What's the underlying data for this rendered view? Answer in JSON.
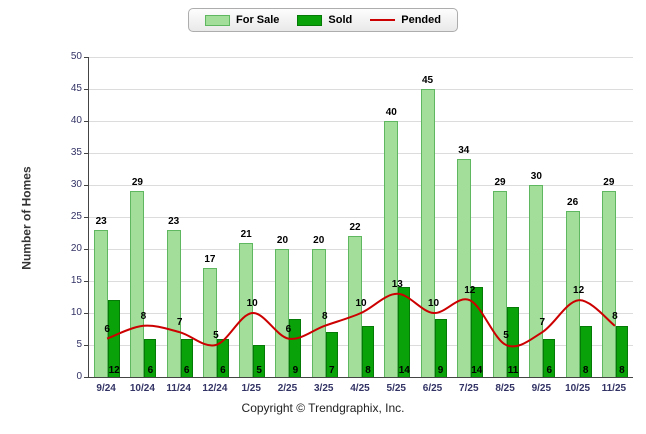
{
  "chart": {
    "ylabel": "Number of Homes",
    "footer": "Copyright © Trendgraphix, Inc."
  },
  "legend": {
    "items": [
      {
        "label": "For Sale",
        "type": "bar",
        "color": "#A3DF9B",
        "border_color": "#5FB75F"
      },
      {
        "label": "Sold",
        "type": "bar",
        "color": "#09A309",
        "border_color": "#067A06"
      },
      {
        "label": "Pended",
        "type": "line",
        "color": "#CC0000"
      }
    ]
  },
  "chart_data": {
    "type": "bar",
    "title": "",
    "xlabel": "",
    "ylabel": "Number of Homes",
    "categories": [
      "9/24",
      "10/24",
      "11/24",
      "12/24",
      "1/25",
      "2/25",
      "3/25",
      "4/25",
      "5/25",
      "6/25",
      "7/25",
      "8/25",
      "9/25",
      "10/25",
      "11/25"
    ],
    "series": [
      {
        "name": "For Sale",
        "type": "bar",
        "color": "#A3DF9B",
        "border_color": "#5FB75F",
        "values": [
          23,
          29,
          23,
          17,
          21,
          20,
          20,
          22,
          40,
          45,
          34,
          29,
          30,
          26,
          29
        ]
      },
      {
        "name": "Sold",
        "type": "bar",
        "color": "#09A309",
        "border_color": "#067A06",
        "values": [
          12,
          6,
          6,
          6,
          5,
          9,
          7,
          8,
          14,
          9,
          14,
          11,
          6,
          8,
          8
        ]
      },
      {
        "name": "Pended",
        "type": "line",
        "color": "#CC0000",
        "values": [
          6,
          8,
          7,
          5,
          10,
          6,
          8,
          10,
          13,
          10,
          12,
          5,
          7,
          12,
          8
        ]
      }
    ],
    "ylim": [
      0,
      50
    ],
    "yticks": [
      0,
      5,
      10,
      15,
      20,
      25,
      30,
      35,
      40,
      45,
      50
    ],
    "grid": true,
    "legend_position": "top-center"
  }
}
